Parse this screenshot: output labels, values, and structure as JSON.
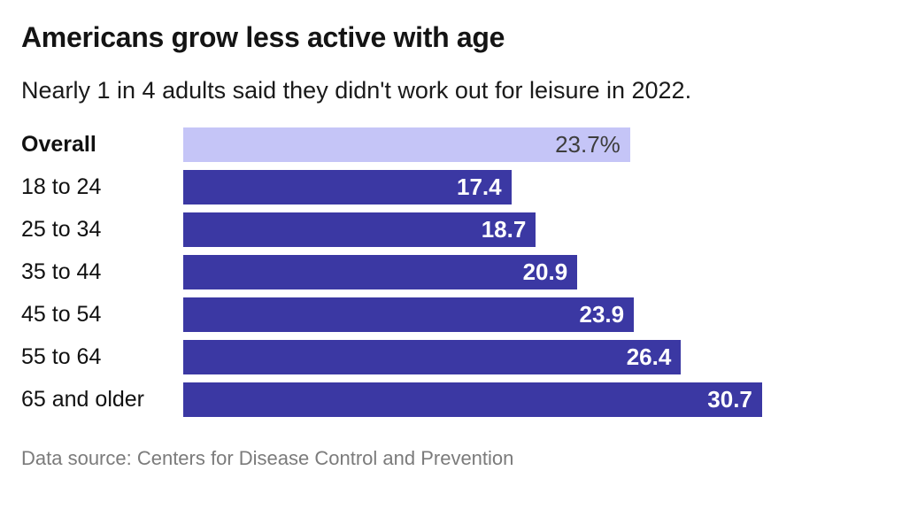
{
  "header": {
    "title": "Americans grow less active with age",
    "subtitle": "Nearly 1 in 4 adults said they didn't work out for leisure in 2022."
  },
  "footer": {
    "source": "Data source: Centers for Disease Control and Prevention"
  },
  "colors": {
    "bar": "#3b38a3",
    "highlight_bar": "#c5c5f7",
    "value_label": "#ffffff",
    "highlight_value_label": "#3d3d3d",
    "category_label": "#111111",
    "source_text": "#7b7b7b"
  },
  "chart_data": {
    "type": "bar",
    "orientation": "horizontal",
    "title": "Americans grow less active with age",
    "subtitle": "Nearly 1 in 4 adults said they didn't work out for leisure in 2022.",
    "source": "Data source: Centers for Disease Control and Prevention",
    "categories": [
      "Overall",
      "18 to 24",
      "25 to 34",
      "35 to 44",
      "45 to 54",
      "55 to 64",
      "65 and older"
    ],
    "values": [
      23.7,
      17.4,
      18.7,
      20.9,
      23.9,
      26.4,
      30.7
    ],
    "value_labels": [
      "23.7%",
      "17.4",
      "18.7",
      "20.9",
      "23.9",
      "26.4",
      "30.7"
    ],
    "highlight_index": 0,
    "xlim": [
      0,
      30.7
    ],
    "grid": false,
    "legend": false,
    "value_labels_position": "inside-end"
  }
}
